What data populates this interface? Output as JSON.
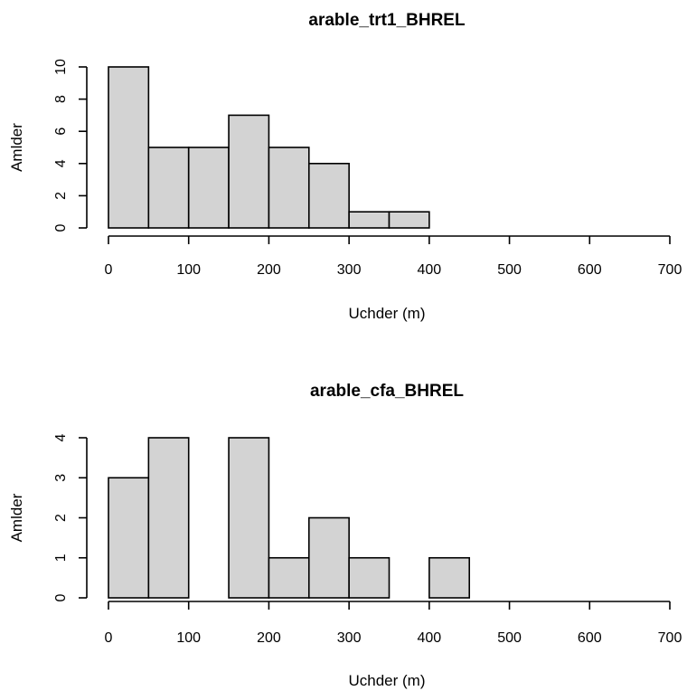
{
  "chart_data": [
    {
      "type": "bar",
      "title": "arable_trt1_BHREL",
      "xlabel": "Uchder (m)",
      "ylabel": "Amlder",
      "bin_edges": [
        0,
        50,
        100,
        150,
        200,
        250,
        300,
        350,
        400,
        450,
        500,
        550,
        600,
        650,
        700
      ],
      "values": [
        10,
        5,
        5,
        7,
        5,
        4,
        1,
        1,
        0,
        0,
        0,
        0,
        0,
        0
      ],
      "xlim": [
        0,
        700
      ],
      "ylim": [
        0,
        10
      ],
      "xticks": [
        "0",
        "100",
        "200",
        "300",
        "400",
        "500",
        "600",
        "700"
      ],
      "yticks": [
        "0",
        "2",
        "4",
        "6",
        "8",
        "10"
      ],
      "grid": false
    },
    {
      "type": "bar",
      "title": "arable_cfa_BHREL",
      "xlabel": "Uchder (m)",
      "ylabel": "Amlder",
      "bin_edges": [
        0,
        50,
        100,
        150,
        200,
        250,
        300,
        350,
        400,
        450,
        500,
        550,
        600,
        650,
        700
      ],
      "values": [
        3,
        4,
        0,
        4,
        1,
        2,
        1,
        0,
        1,
        0,
        0,
        0,
        0,
        0
      ],
      "xlim": [
        0,
        700
      ],
      "ylim": [
        0,
        4
      ],
      "xticks": [
        "0",
        "100",
        "200",
        "300",
        "400",
        "500",
        "600",
        "700"
      ],
      "yticks": [
        "0",
        "1",
        "2",
        "3",
        "4"
      ],
      "grid": false
    }
  ]
}
